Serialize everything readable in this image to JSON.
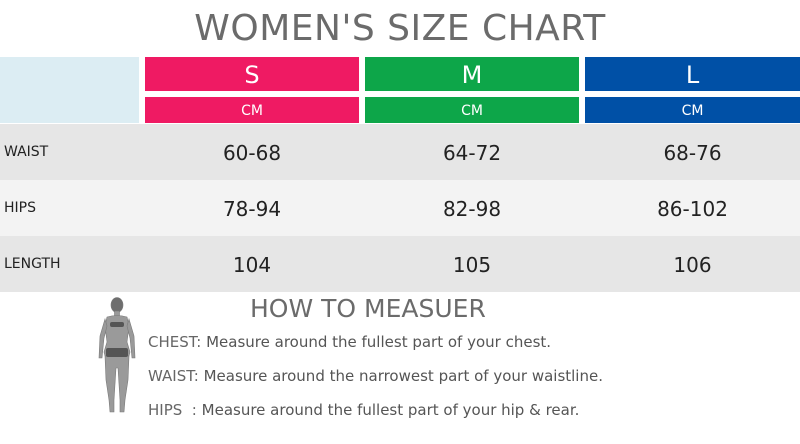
{
  "title": "WOMEN'S SIZE CHART",
  "colors": {
    "s": "#ef1a63",
    "m": "#0da649",
    "l": "#0050a6",
    "corner": "#dcedf3"
  },
  "sizes": [
    {
      "name": "S",
      "unit": "CM"
    },
    {
      "name": "M",
      "unit": "CM"
    },
    {
      "name": "L",
      "unit": "CM"
    }
  ],
  "rows": [
    {
      "label": "WAIST",
      "values": [
        "60-68",
        "64-72",
        "68-76"
      ]
    },
    {
      "label": "HIPS",
      "values": [
        "78-94",
        "82-98",
        "86-102"
      ]
    },
    {
      "label": "LENGTH",
      "values": [
        "104",
        "105",
        "106"
      ]
    }
  ],
  "how_to": {
    "title": "HOW TO MEASUER",
    "figure_icon": "woman-silhouette-icon",
    "items": [
      {
        "label": "CHEST:",
        "text": "Measure around the fullest part of your chest."
      },
      {
        "label": "WAIST:",
        "text": "Measure around the narrowest part of your waistline."
      },
      {
        "label": "HIPS  :",
        "text": "Measure around the fullest part of your hip & rear."
      }
    ]
  }
}
